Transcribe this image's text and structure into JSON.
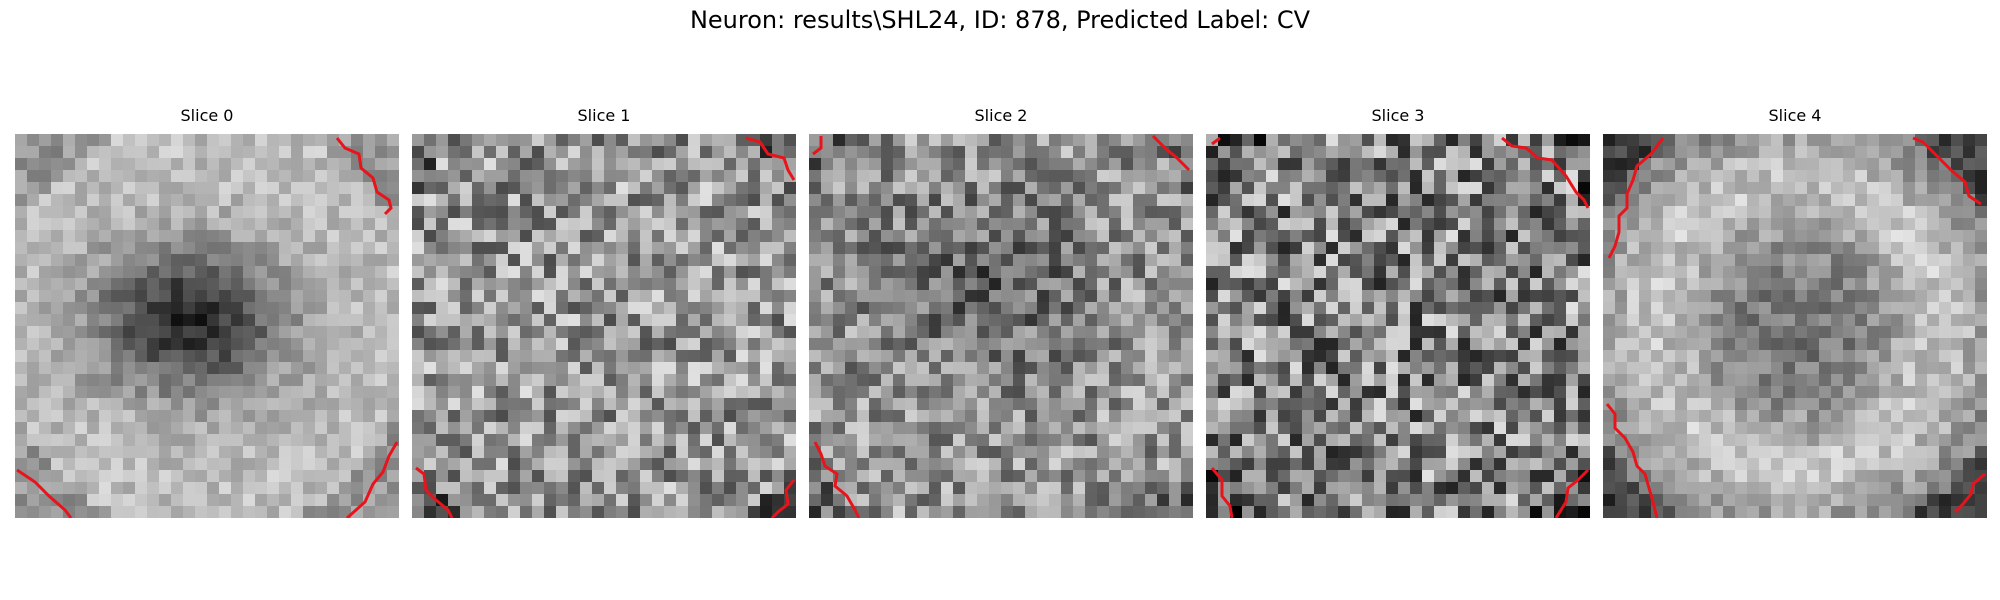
{
  "figure": {
    "title": "Neuron: results\\SHL24, ID: 878, Predicted Label: CV"
  },
  "panels": [
    {
      "title": "Slice 0",
      "pattern": "dark-center-blob",
      "colormap": "gray",
      "contour_color": "#e8141c"
    },
    {
      "title": "Slice 1",
      "pattern": "noisy-texture",
      "colormap": "gray",
      "contour_color": "#e8141c"
    },
    {
      "title": "Slice 2",
      "pattern": "noisy-texture-dark-center",
      "colormap": "gray",
      "contour_color": "#e8141c"
    },
    {
      "title": "Slice 3",
      "pattern": "high-contrast-noise",
      "colormap": "gray",
      "contour_color": "#e8141c"
    },
    {
      "title": "Slice 4",
      "pattern": "bright-ring-dark-corners",
      "colormap": "gray",
      "contour_color": "#e8141c"
    }
  ]
}
